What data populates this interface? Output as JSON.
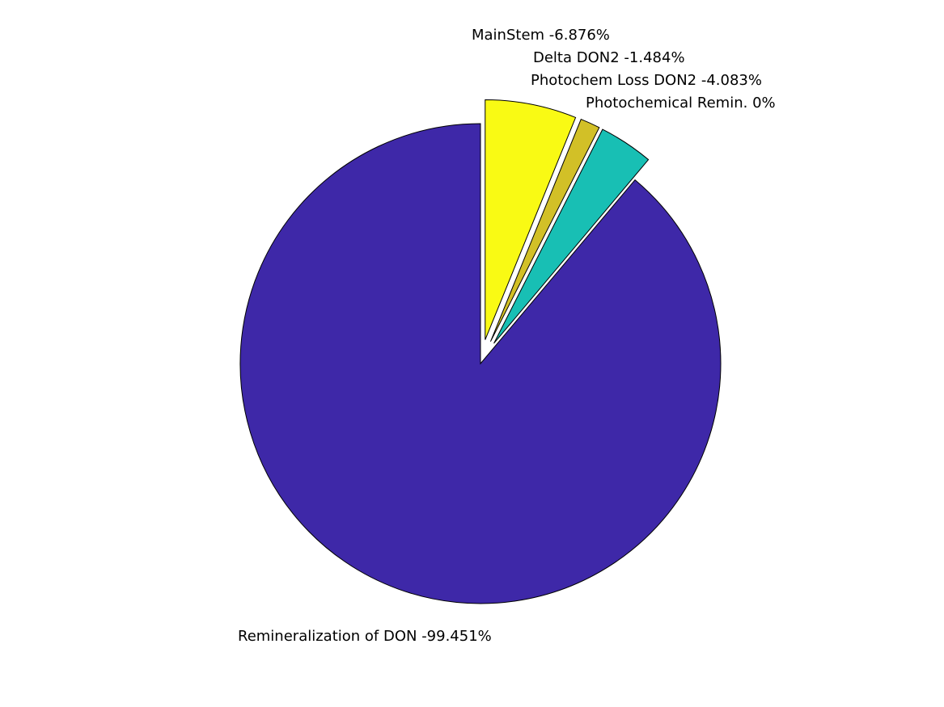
{
  "chart_data": {
    "type": "pie",
    "title": "",
    "slices": [
      {
        "name": "Remineralization of DON",
        "label": "Remineralization of DON -99.451%",
        "value": 99.451,
        "color": "#3e28a8",
        "exploded": false
      },
      {
        "name": "MainStem",
        "label": "MainStem -6.876%",
        "value": 6.876,
        "color": "#f9fa14",
        "exploded": true
      },
      {
        "name": "Delta DON2",
        "label": "Delta DON2 -1.484%",
        "value": 1.484,
        "color": "#d2c027",
        "exploded": true
      },
      {
        "name": "Photochem Loss DON2",
        "label": "Photochem Loss DON2 -4.083%",
        "value": 4.083,
        "color": "#18bfb4",
        "exploded": true
      },
      {
        "name": "Photochemical Remin.",
        "label": "Photochemical Remin. 0%",
        "value": 0,
        "color": "#d1b13a",
        "exploded": true
      }
    ]
  }
}
